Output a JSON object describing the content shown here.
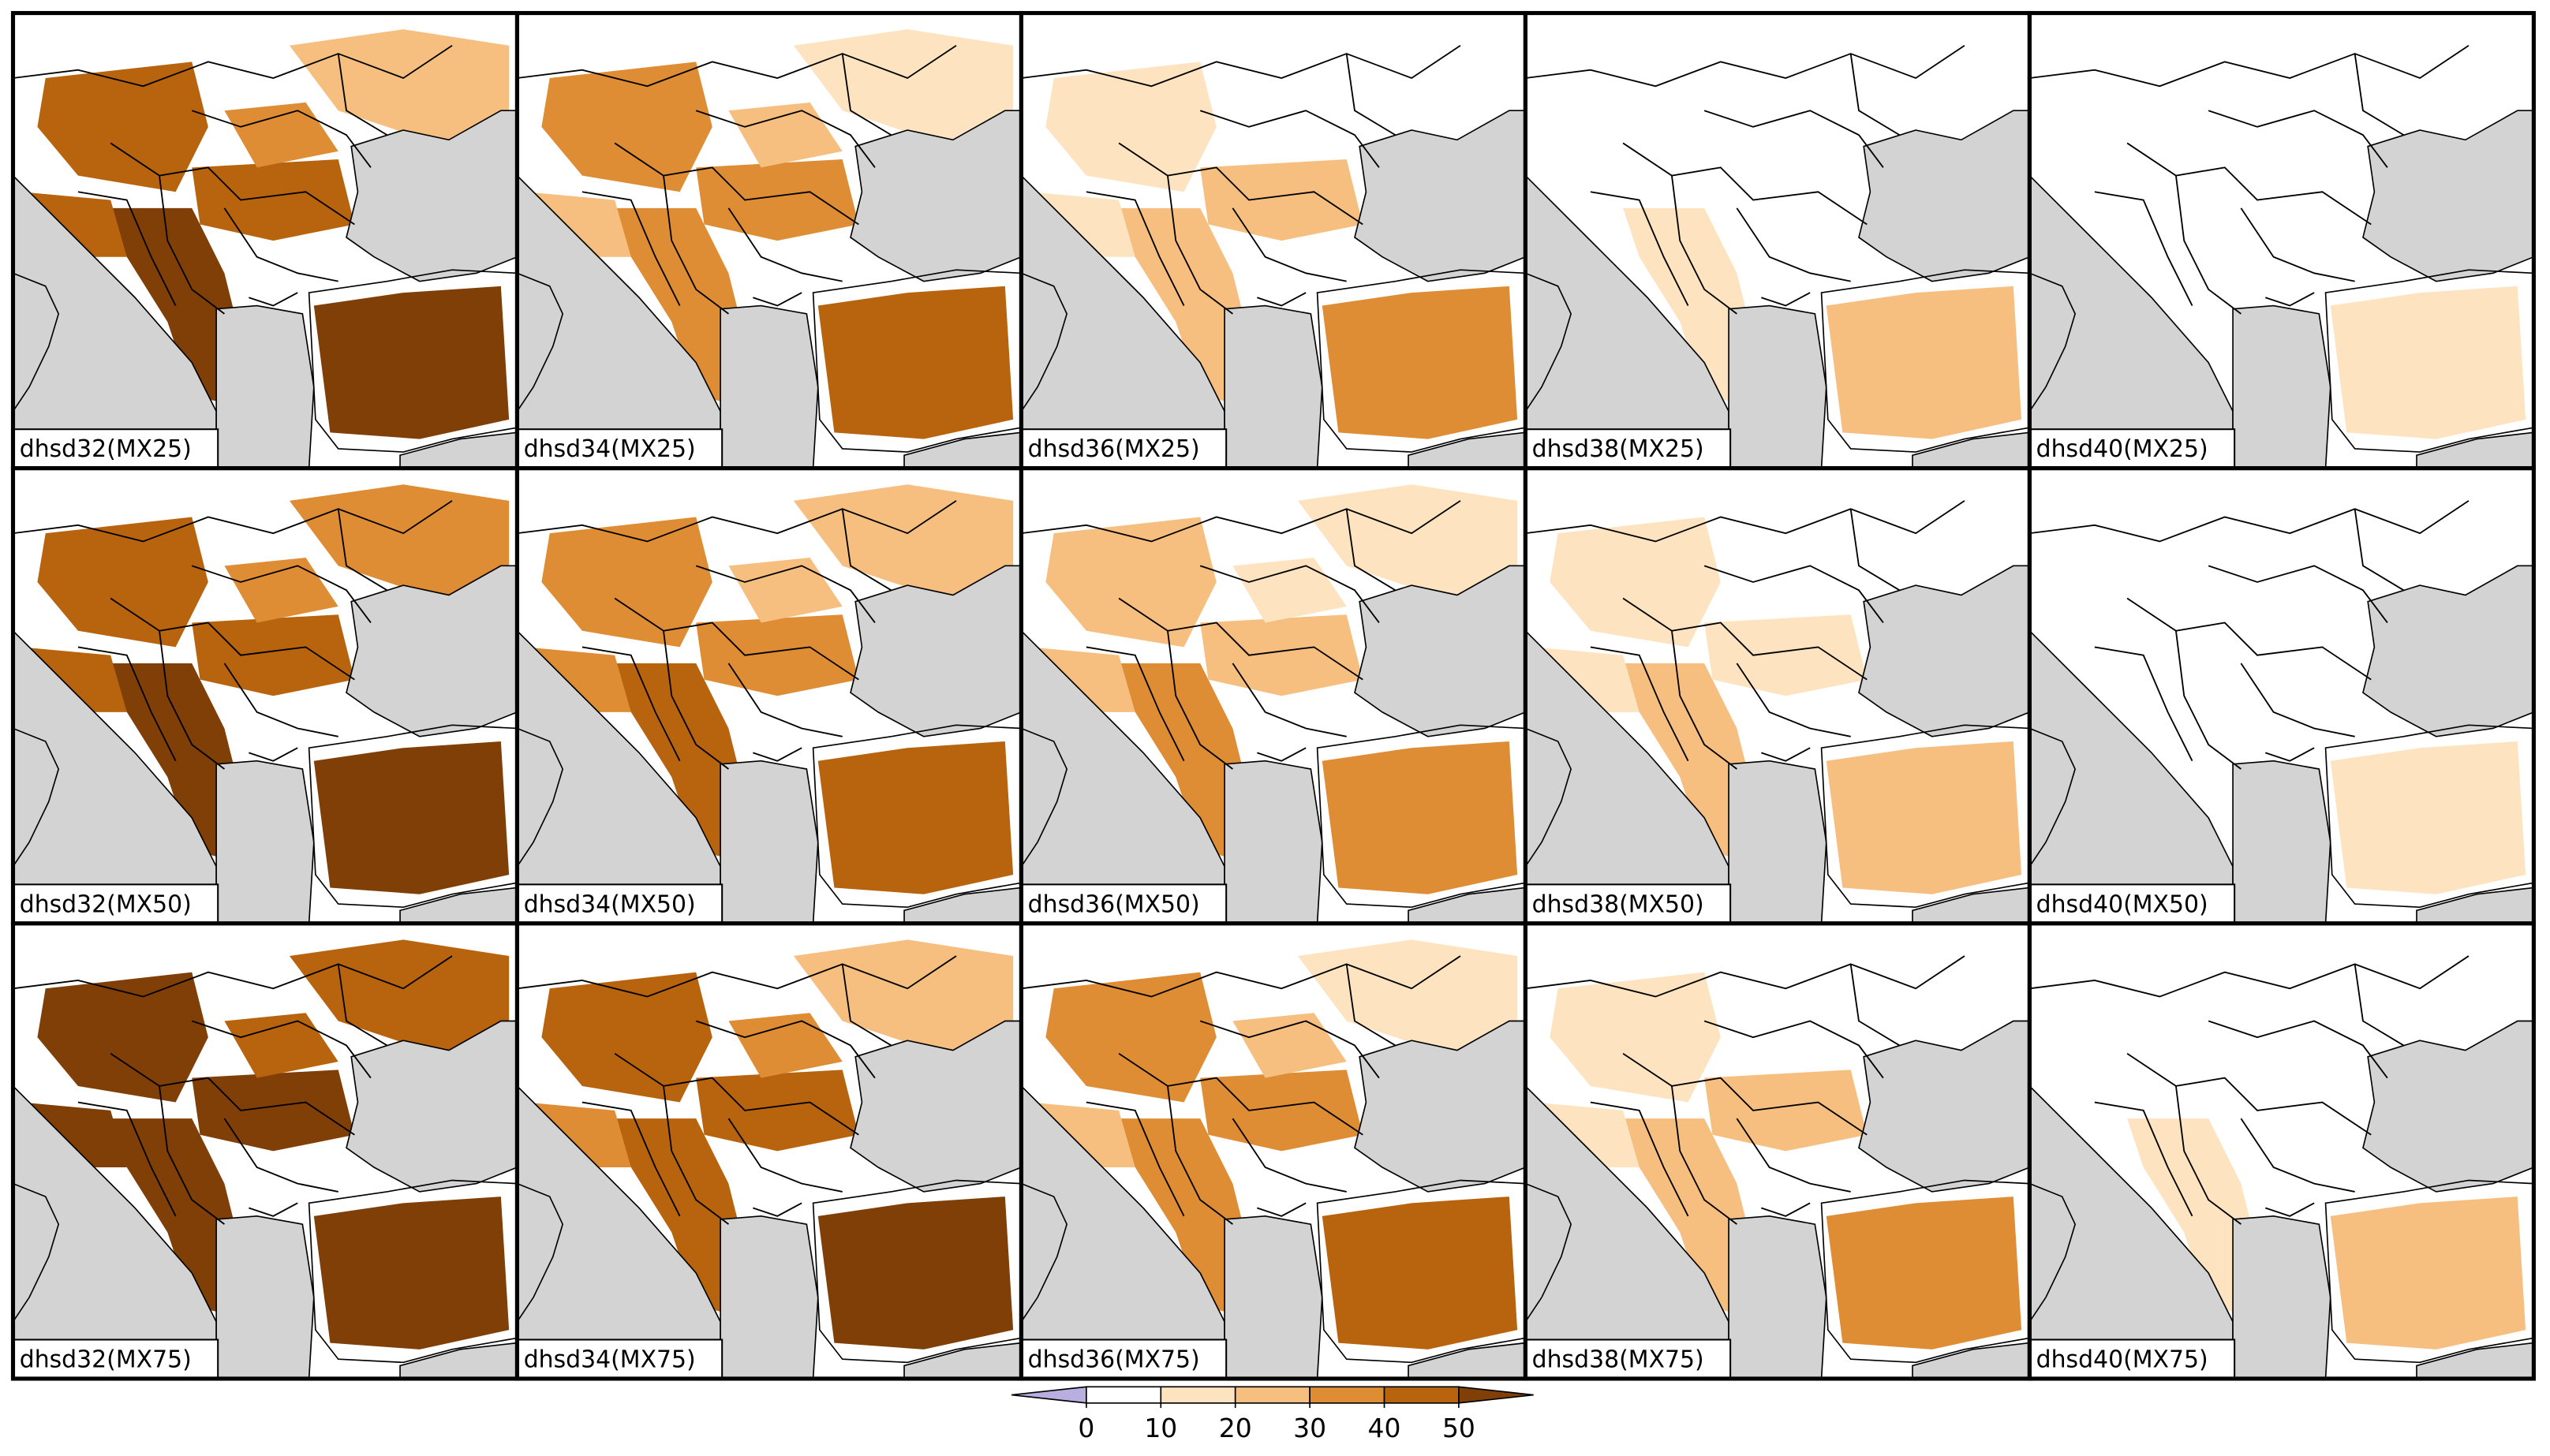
{
  "panels": [
    {
      "label": "dhsd32(MX25)"
    },
    {
      "label": "dhsd34(MX25)"
    },
    {
      "label": "dhsd36(MX25)"
    },
    {
      "label": "dhsd38(MX25)"
    },
    {
      "label": "dhsd40(MX25)"
    },
    {
      "label": "dhsd32(MX50)"
    },
    {
      "label": "dhsd34(MX50)"
    },
    {
      "label": "dhsd36(MX50)"
    },
    {
      "label": "dhsd38(MX50)"
    },
    {
      "label": "dhsd40(MX50)"
    },
    {
      "label": "dhsd32(MX75)"
    },
    {
      "label": "dhsd34(MX75)"
    },
    {
      "label": "dhsd36(MX75)"
    },
    {
      "label": "dhsd38(MX75)"
    },
    {
      "label": "dhsd40(MX75)"
    }
  ],
  "colorbar": {
    "ticks": [
      0,
      10,
      20,
      30,
      40,
      50
    ],
    "colors": [
      "#b8aee0",
      "#ffffff",
      "#fde3bf",
      "#f6bf80",
      "#df8d34",
      "#b8640f",
      "#7f3f07"
    ]
  }
}
